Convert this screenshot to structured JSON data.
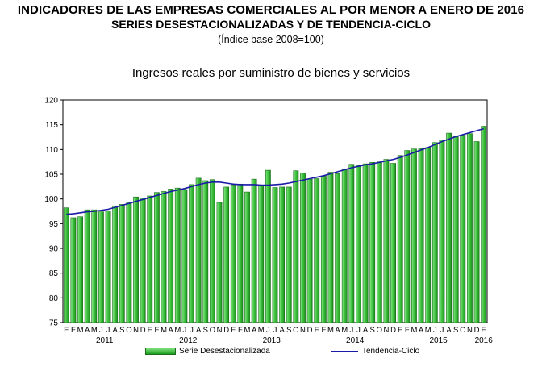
{
  "header": {
    "title": "INDICADORES DE LAS EMPRESAS COMERCIALES AL POR MENOR A ENERO DE 2016",
    "subtitle": "SERIES DESESTACIONALIZADAS Y DE TENDENCIA-CICLO",
    "base": "(Índice base 2008=100)"
  },
  "chart_data": {
    "type": "bar",
    "title": "Ingresos reales por suministro de bienes y servicios",
    "ylim": [
      75,
      120
    ],
    "yticks": [
      75,
      80,
      85,
      90,
      95,
      100,
      105,
      110,
      115,
      120
    ],
    "grid": false,
    "legend_position": "bottom",
    "categories": [
      "E",
      "F",
      "M",
      "A",
      "M",
      "J",
      "J",
      "A",
      "S",
      "O",
      "N",
      "D",
      "E",
      "F",
      "M",
      "A",
      "M",
      "J",
      "J",
      "A",
      "S",
      "O",
      "N",
      "D",
      "E",
      "F",
      "M",
      "A",
      "M",
      "J",
      "J",
      "A",
      "S",
      "O",
      "N",
      "D",
      "E",
      "F",
      "M",
      "A",
      "M",
      "J",
      "J",
      "A",
      "S",
      "O",
      "N",
      "D",
      "E",
      "F",
      "M",
      "A",
      "M",
      "J",
      "J",
      "A",
      "S",
      "O",
      "N",
      "D",
      "E"
    ],
    "years": [
      {
        "label": "2011",
        "start": 0,
        "end": 11
      },
      {
        "label": "2012",
        "start": 12,
        "end": 23
      },
      {
        "label": "2013",
        "start": 24,
        "end": 35
      },
      {
        "label": "2014",
        "start": 36,
        "end": 47
      },
      {
        "label": "2015",
        "start": 48,
        "end": 59
      },
      {
        "label": "2016",
        "start": 60,
        "end": 60
      }
    ],
    "series": [
      {
        "name": "Serie Desestacionalizada",
        "kind": "bar",
        "color": "#2eaa2e",
        "values": [
          98.2,
          96.2,
          96.4,
          97.8,
          97.8,
          97.4,
          97.6,
          98.6,
          98.9,
          99.4,
          100.4,
          100.2,
          100.6,
          101.3,
          101.5,
          102.0,
          102.2,
          101.9,
          102.9,
          104.2,
          103.7,
          103.9,
          99.3,
          102.4,
          102.8,
          103.0,
          101.4,
          104.0,
          102.7,
          105.8,
          102.3,
          102.4,
          102.4,
          105.7,
          105.2,
          104.0,
          104.1,
          104.6,
          105.4,
          105.1,
          106.1,
          107.0,
          106.8,
          107.1,
          107.4,
          107.5,
          108.0,
          107.2,
          108.8,
          109.8,
          110.1,
          110.2,
          110.4,
          111.4,
          111.9,
          113.3,
          112.7,
          112.9,
          113.2,
          111.6,
          114.7
        ]
      },
      {
        "name": "Tendencia-Ciclo",
        "kind": "line",
        "color": "#1a1aa8",
        "values": [
          96.9,
          97.0,
          97.2,
          97.4,
          97.5,
          97.7,
          97.9,
          98.3,
          98.7,
          99.1,
          99.5,
          99.9,
          100.3,
          100.7,
          101.1,
          101.5,
          101.8,
          102.1,
          102.5,
          102.9,
          103.2,
          103.4,
          103.4,
          103.2,
          103.0,
          102.9,
          102.9,
          102.9,
          102.8,
          102.8,
          102.9,
          103.0,
          103.2,
          103.5,
          103.8,
          104.1,
          104.4,
          104.7,
          105.1,
          105.5,
          105.9,
          106.3,
          106.6,
          106.9,
          107.1,
          107.4,
          107.7,
          108.0,
          108.4,
          108.9,
          109.4,
          109.9,
          110.4,
          111.0,
          111.6,
          112.1,
          112.6,
          113.0,
          113.4,
          113.8,
          114.2
        ]
      }
    ]
  }
}
